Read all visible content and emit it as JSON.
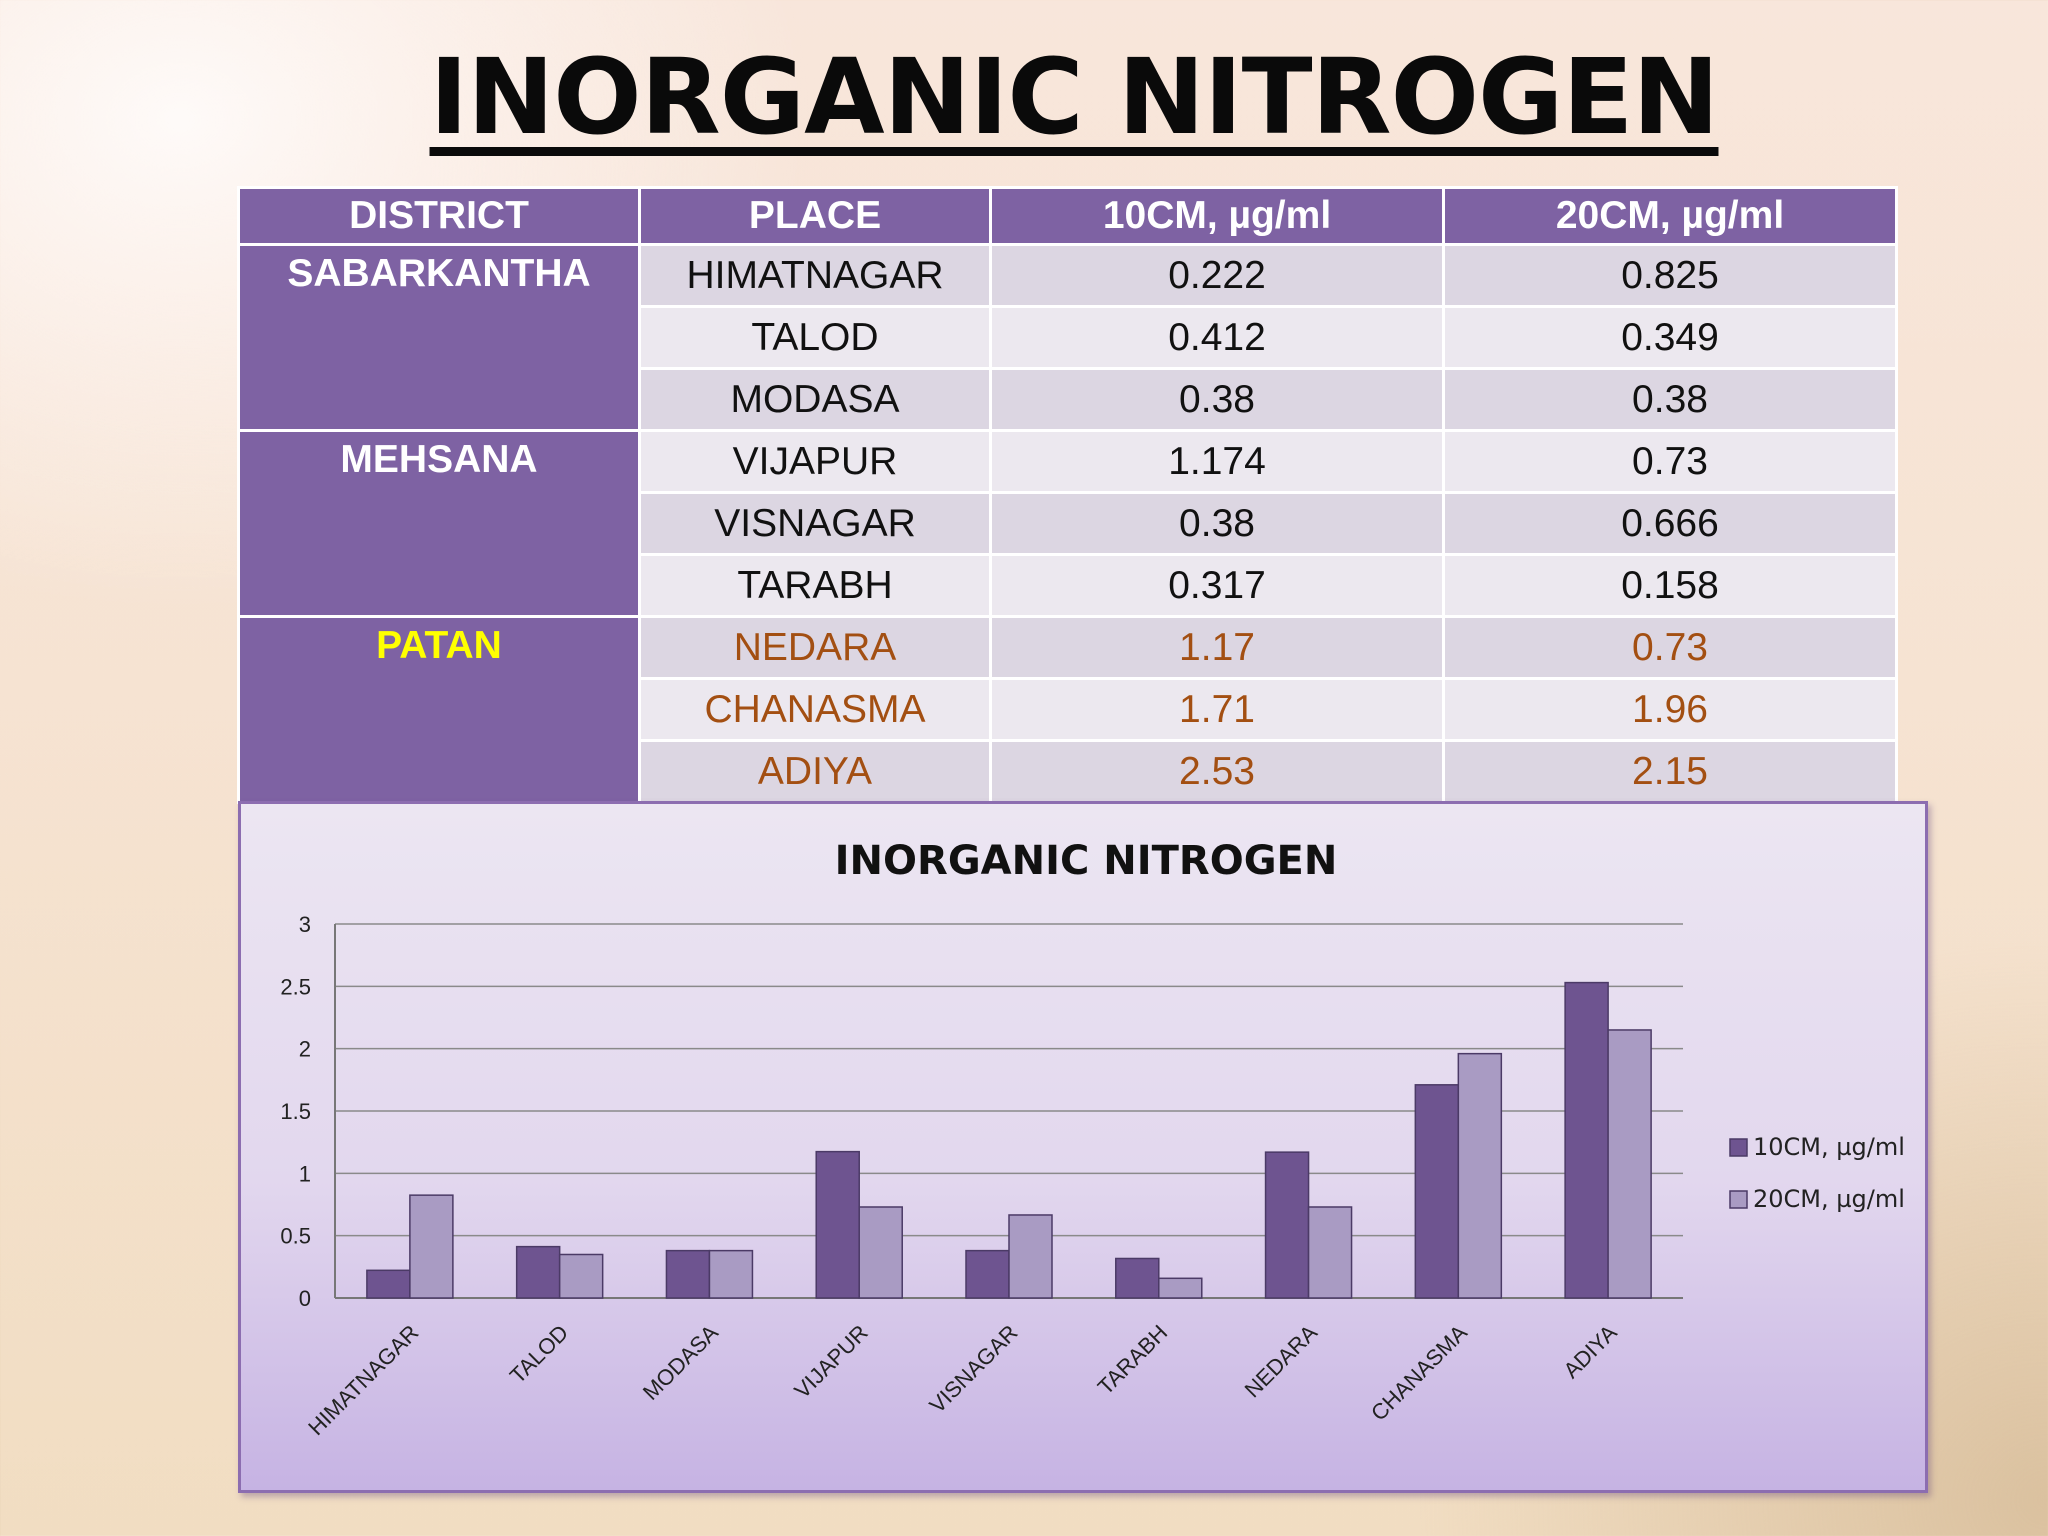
{
  "slide": {
    "title": "INORGANIC NITROGEN"
  },
  "table": {
    "headers": [
      "DISTRICT",
      "PLACE",
      "10CM, µg/ml",
      "20CM, µg/ml"
    ],
    "groups": [
      {
        "district": "SABARKANTHA",
        "district_color": "#ffffff",
        "highlight": false,
        "rows": [
          {
            "place": "HIMATNAGAR",
            "cm10": "0.222",
            "cm20": "0.825"
          },
          {
            "place": "TALOD",
            "cm10": "0.412",
            "cm20": "0.349"
          },
          {
            "place": "MODASA",
            "cm10": "0.38",
            "cm20": "0.38"
          }
        ]
      },
      {
        "district": "MEHSANA",
        "district_color": "#ffffff",
        "highlight": false,
        "rows": [
          {
            "place": "VIJAPUR",
            "cm10": "1.174",
            "cm20": "0.73"
          },
          {
            "place": "VISNAGAR",
            "cm10": "0.38",
            "cm20": "0.666"
          },
          {
            "place": "TARABH",
            "cm10": "0.317",
            "cm20": "0.158"
          }
        ]
      },
      {
        "district": "PATAN",
        "district_color": "#ffff00",
        "highlight": true,
        "rows": [
          {
            "place": "NEDARA",
            "cm10": "1.17",
            "cm20": "0.73"
          },
          {
            "place": "CHANASMA",
            "cm10": "1.71",
            "cm20": "1.96"
          },
          {
            "place": "ADIYA",
            "cm10": "2.53",
            "cm20": "2.15"
          }
        ]
      }
    ]
  },
  "chart_data": {
    "type": "bar",
    "title": "INORGANIC NITROGEN",
    "xlabel": "",
    "ylabel": "",
    "categories": [
      "HIMATNAGAR",
      "TALOD",
      "MODASA",
      "VIJAPUR",
      "VISNAGAR",
      "TARABH",
      "NEDARA",
      "CHANASMA",
      "ADIYA"
    ],
    "series": [
      {
        "name": "10CM, µg/ml",
        "color": "#6e5490",
        "values": [
          0.222,
          0.412,
          0.38,
          1.174,
          0.38,
          0.317,
          1.17,
          1.71,
          2.53
        ]
      },
      {
        "name": "20CM, µg/ml",
        "color": "#a99bc3",
        "values": [
          0.825,
          0.349,
          0.38,
          0.73,
          0.666,
          0.158,
          0.73,
          1.96,
          2.15
        ]
      }
    ],
    "ylim": [
      0,
      3
    ],
    "yticks": [
      "0",
      "0.5",
      "1",
      "1.5",
      "2",
      "2.5",
      "3"
    ],
    "grid": true,
    "legend_position": "right"
  }
}
